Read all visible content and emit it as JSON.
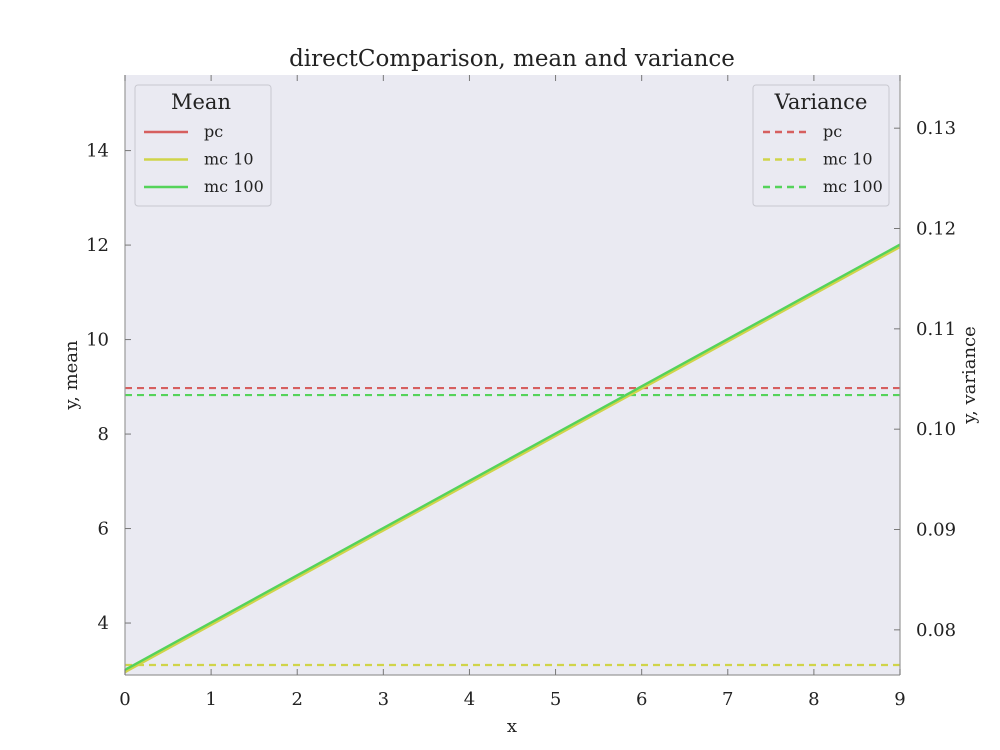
{
  "chart_data": {
    "type": "line",
    "title": "directComparison, mean and variance",
    "xlabel": "x",
    "ylabel_left": "y, mean",
    "ylabel_right": "y, variance",
    "xlim": [
      0,
      9
    ],
    "ylim_left": [
      2.9,
      15.6
    ],
    "ylim_right": [
      0.0755,
      0.1353
    ],
    "x_ticks": [
      0,
      1,
      2,
      3,
      4,
      5,
      6,
      7,
      8,
      9
    ],
    "y_ticks_left": [
      4,
      6,
      8,
      10,
      12,
      14
    ],
    "y_ticks_right": [
      0.08,
      0.09,
      0.1,
      0.11,
      0.12,
      0.13
    ],
    "y_tick_format_right": 2,
    "background": "#eaeaf2",
    "x": [
      0,
      1,
      2,
      3,
      4,
      5,
      6,
      7,
      8,
      9
    ],
    "mean_series": [
      {
        "name": "pc",
        "color": "#d65f5f",
        "values": [
          3.0,
          4.0,
          5.0,
          6.0,
          7.0,
          8.0,
          9.0,
          10.0,
          11.0,
          12.0
        ]
      },
      {
        "name": "mc 10",
        "color": "#d0d44a",
        "values": [
          2.96,
          3.96,
          4.96,
          5.96,
          6.96,
          7.96,
          8.96,
          9.96,
          10.96,
          11.96
        ]
      },
      {
        "name": "mc 100",
        "color": "#55d35a",
        "values": [
          3.01,
          4.01,
          5.01,
          6.01,
          7.01,
          8.01,
          9.01,
          10.01,
          11.01,
          12.01
        ]
      }
    ],
    "variance_series": [
      {
        "name": "pc",
        "color": "#d65f5f",
        "values": [
          0.1041,
          0.1041,
          0.1041,
          0.1041,
          0.1041,
          0.1041,
          0.1041,
          0.1041,
          0.1041,
          0.1041
        ]
      },
      {
        "name": "mc 10",
        "color": "#d0d44a",
        "values": [
          0.0765,
          0.0765,
          0.0765,
          0.0765,
          0.0765,
          0.0765,
          0.0765,
          0.0765,
          0.0765,
          0.0765
        ]
      },
      {
        "name": "mc 100",
        "color": "#55d35a",
        "values": [
          0.1034,
          0.1034,
          0.1034,
          0.1034,
          0.1034,
          0.1034,
          0.1034,
          0.1034,
          0.1034,
          0.1034
        ]
      }
    ],
    "legend_mean": {
      "title": "Mean",
      "placement": "top-left"
    },
    "legend_variance": {
      "title": "Variance",
      "placement": "top-right"
    }
  }
}
